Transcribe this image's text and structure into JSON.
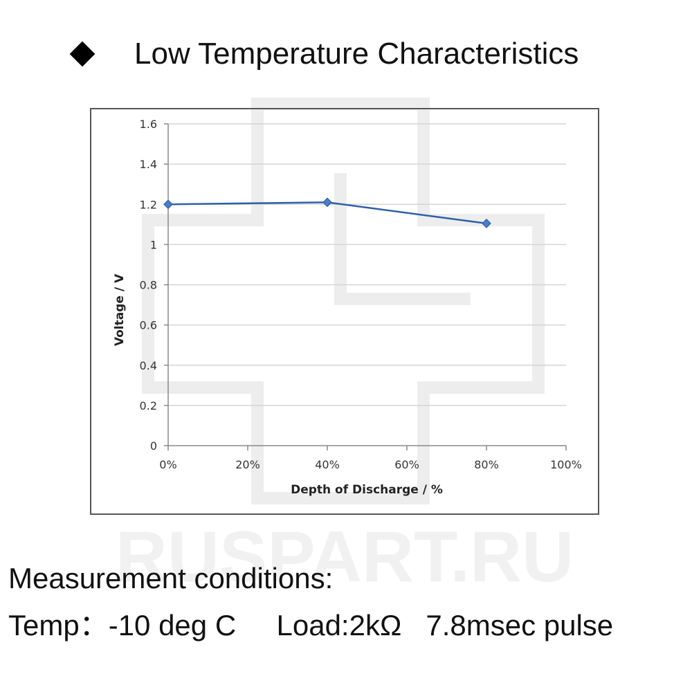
{
  "header": {
    "bullet_icon": "diamond-icon",
    "title": "Low Temperature Characteristics"
  },
  "watermark": "RUSPART.RU",
  "chart_data": {
    "type": "line",
    "title": "",
    "xlabel": "Depth of Discharge / %",
    "ylabel": "Voltage  /  V",
    "x": [
      0,
      40,
      80
    ],
    "xlim": [
      0,
      100
    ],
    "ylim": [
      0,
      1.6
    ],
    "x_ticks": [
      0,
      20,
      40,
      60,
      80,
      100
    ],
    "x_tick_labels": [
      "0%",
      "20%",
      "40%",
      "60%",
      "80%",
      "100%"
    ],
    "y_ticks": [
      0,
      0.2,
      0.4,
      0.6,
      0.8,
      1,
      1.2,
      1.4,
      1.6
    ],
    "y_tick_labels": [
      "0",
      "0.2",
      "0.4",
      "0.6",
      "0.8",
      "1",
      "1.2",
      "1.4",
      "1.6"
    ],
    "grid": true,
    "series": [
      {
        "values": [
          1.2,
          1.21,
          1.105
        ],
        "color": "#2e5fa8",
        "marker": "diamond"
      }
    ]
  },
  "conditions": {
    "heading": "Measurement conditions:",
    "details": "Temp：-10 deg C     Load:2kΩ   7.8msec pulse"
  }
}
